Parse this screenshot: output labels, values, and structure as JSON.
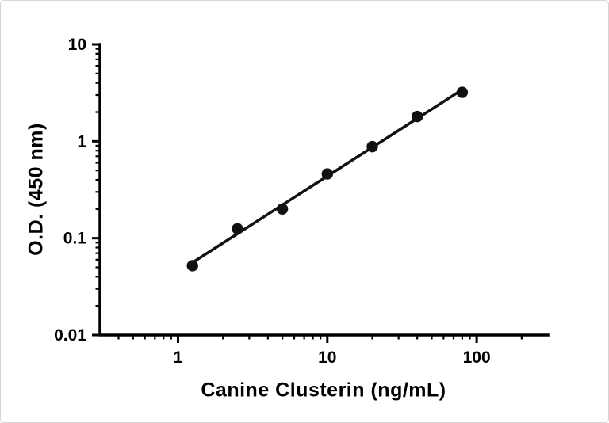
{
  "chart_data": {
    "type": "scatter",
    "title": "",
    "xlabel": "Canine Clusterin (ng/mL)",
    "ylabel": "O.D. (450 nm)",
    "x_scale": "log",
    "y_scale": "log",
    "xlim": [
      0.3,
      300
    ],
    "ylim": [
      0.01,
      10
    ],
    "x_ticks": [
      1,
      10,
      100
    ],
    "x_tick_labels": [
      "1",
      "10",
      "100"
    ],
    "y_ticks": [
      0.01,
      0.1,
      1,
      10
    ],
    "y_tick_labels": [
      "0.01",
      "0.1",
      "1",
      "10"
    ],
    "grid": false,
    "legend": "none",
    "points": [
      {
        "x": 1.25,
        "y": 0.052
      },
      {
        "x": 2.5,
        "y": 0.125
      },
      {
        "x": 5,
        "y": 0.2
      },
      {
        "x": 10,
        "y": 0.46
      },
      {
        "x": 20,
        "y": 0.88
      },
      {
        "x": 40,
        "y": 1.8
      },
      {
        "x": 80,
        "y": 3.2
      }
    ],
    "fit_line": {
      "type": "log-log-linear",
      "x_start": 1.25,
      "x_end": 80
    },
    "marker_color": "#111111",
    "line_color": "#111111",
    "axis_color": "#000000"
  }
}
